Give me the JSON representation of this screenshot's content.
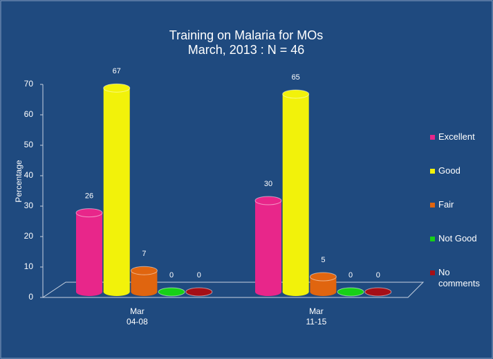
{
  "chart_data": {
    "type": "bar3d",
    "title": "Training on Malaria for MOs",
    "subtitle": "March, 2013 : N = 46",
    "ylabel": "Percentage",
    "categories": [
      [
        "Mar",
        "04-08"
      ],
      [
        "Mar",
        "11-15"
      ]
    ],
    "series": [
      {
        "name": "Excellent",
        "color": "#e8268a",
        "values": [
          26,
          30
        ]
      },
      {
        "name": "Good",
        "color": "#f2f20a",
        "values": [
          67,
          65
        ]
      },
      {
        "name": "Fair",
        "color": "#e0650f",
        "values": [
          7,
          5
        ]
      },
      {
        "name": "Not Good",
        "color": "#17d017",
        "values": [
          0,
          0
        ]
      },
      {
        "name": "No comments",
        "color": "#a50f16",
        "values": [
          0,
          0
        ]
      }
    ],
    "ylim": [
      0,
      70
    ],
    "yticks": [
      0,
      10,
      20,
      30,
      40,
      50,
      60,
      70
    ]
  }
}
